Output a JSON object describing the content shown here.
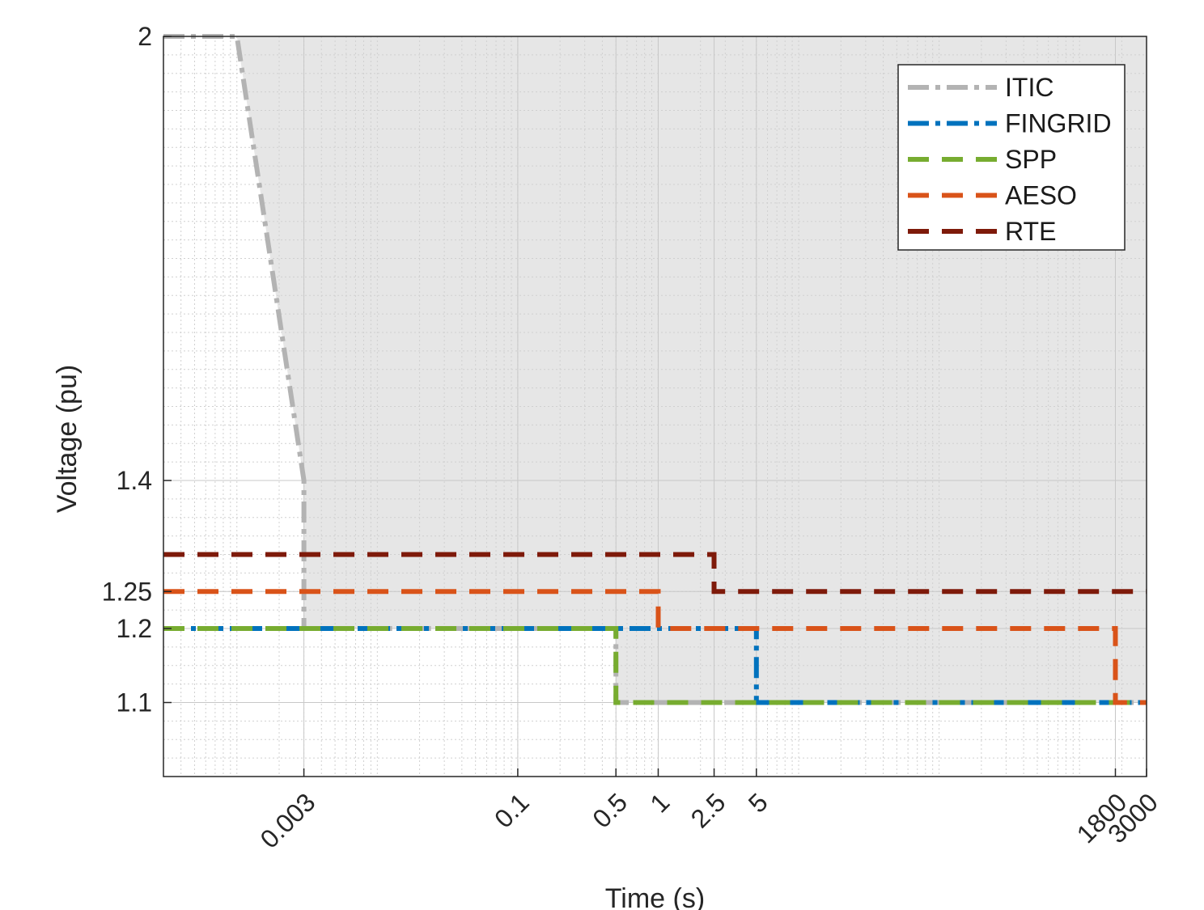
{
  "chart_data": {
    "type": "line",
    "xlabel": "Time (s)",
    "ylabel": "Voltage (pu)",
    "x_scale": "log",
    "grid": true,
    "legend_placement": "top-right",
    "xlim": [
      0.0003,
      3000
    ],
    "ylim": [
      1.0,
      2.0
    ],
    "x_ticks": [
      {
        "value": 0.003,
        "label": "0.003"
      },
      {
        "value": 0.1,
        "label": "0.1"
      },
      {
        "value": 0.5,
        "label": "0.5"
      },
      {
        "value": 1,
        "label": "1"
      },
      {
        "value": 2.5,
        "label": "2.5"
      },
      {
        "value": 5,
        "label": "5"
      },
      {
        "value": 1800,
        "label": "1800"
      },
      {
        "value": 3000,
        "label": "3000"
      }
    ],
    "y_ticks": [
      {
        "value": 1.1,
        "label": "1.1"
      },
      {
        "value": 1.2,
        "label": "1.2"
      },
      {
        "value": 1.25,
        "label": "1.25"
      },
      {
        "value": 1.4,
        "label": "1.4"
      },
      {
        "value": 2,
        "label": "2"
      }
    ],
    "shaded_region": {
      "series": "ITIC",
      "color": "#e6e6e6"
    },
    "series": [
      {
        "name": "ITIC",
        "color": "#b3b3b3",
        "dash": "dashdot",
        "points": [
          [
            0.0003,
            2.0
          ],
          [
            0.001,
            2.0
          ],
          [
            0.003,
            1.4
          ],
          [
            0.003,
            1.2
          ],
          [
            0.5,
            1.2
          ],
          [
            0.5,
            1.1
          ],
          [
            3000,
            1.1
          ]
        ]
      },
      {
        "name": "FINGRID",
        "color": "#0072bd",
        "dash": "dashdot",
        "points": [
          [
            0.0003,
            1.2
          ],
          [
            5,
            1.2
          ],
          [
            5,
            1.1
          ],
          [
            3000,
            1.1
          ]
        ]
      },
      {
        "name": "SPP",
        "color": "#77ac30",
        "dash": "dash",
        "points": [
          [
            0.0003,
            1.2
          ],
          [
            0.5,
            1.2
          ],
          [
            0.5,
            1.1
          ],
          [
            3000,
            1.1
          ]
        ]
      },
      {
        "name": "AESO",
        "color": "#d95319",
        "dash": "dash",
        "points": [
          [
            0.0003,
            1.25
          ],
          [
            1,
            1.25
          ],
          [
            1,
            1.2
          ],
          [
            1800,
            1.2
          ],
          [
            1800,
            1.1
          ],
          [
            3000,
            1.1
          ]
        ]
      },
      {
        "name": "RTE",
        "color": "#7e1a0a",
        "dash": "dash",
        "points": [
          [
            0.0003,
            1.3
          ],
          [
            2.5,
            1.3
          ],
          [
            2.5,
            1.25
          ],
          [
            3000,
            1.25
          ]
        ]
      }
    ]
  }
}
